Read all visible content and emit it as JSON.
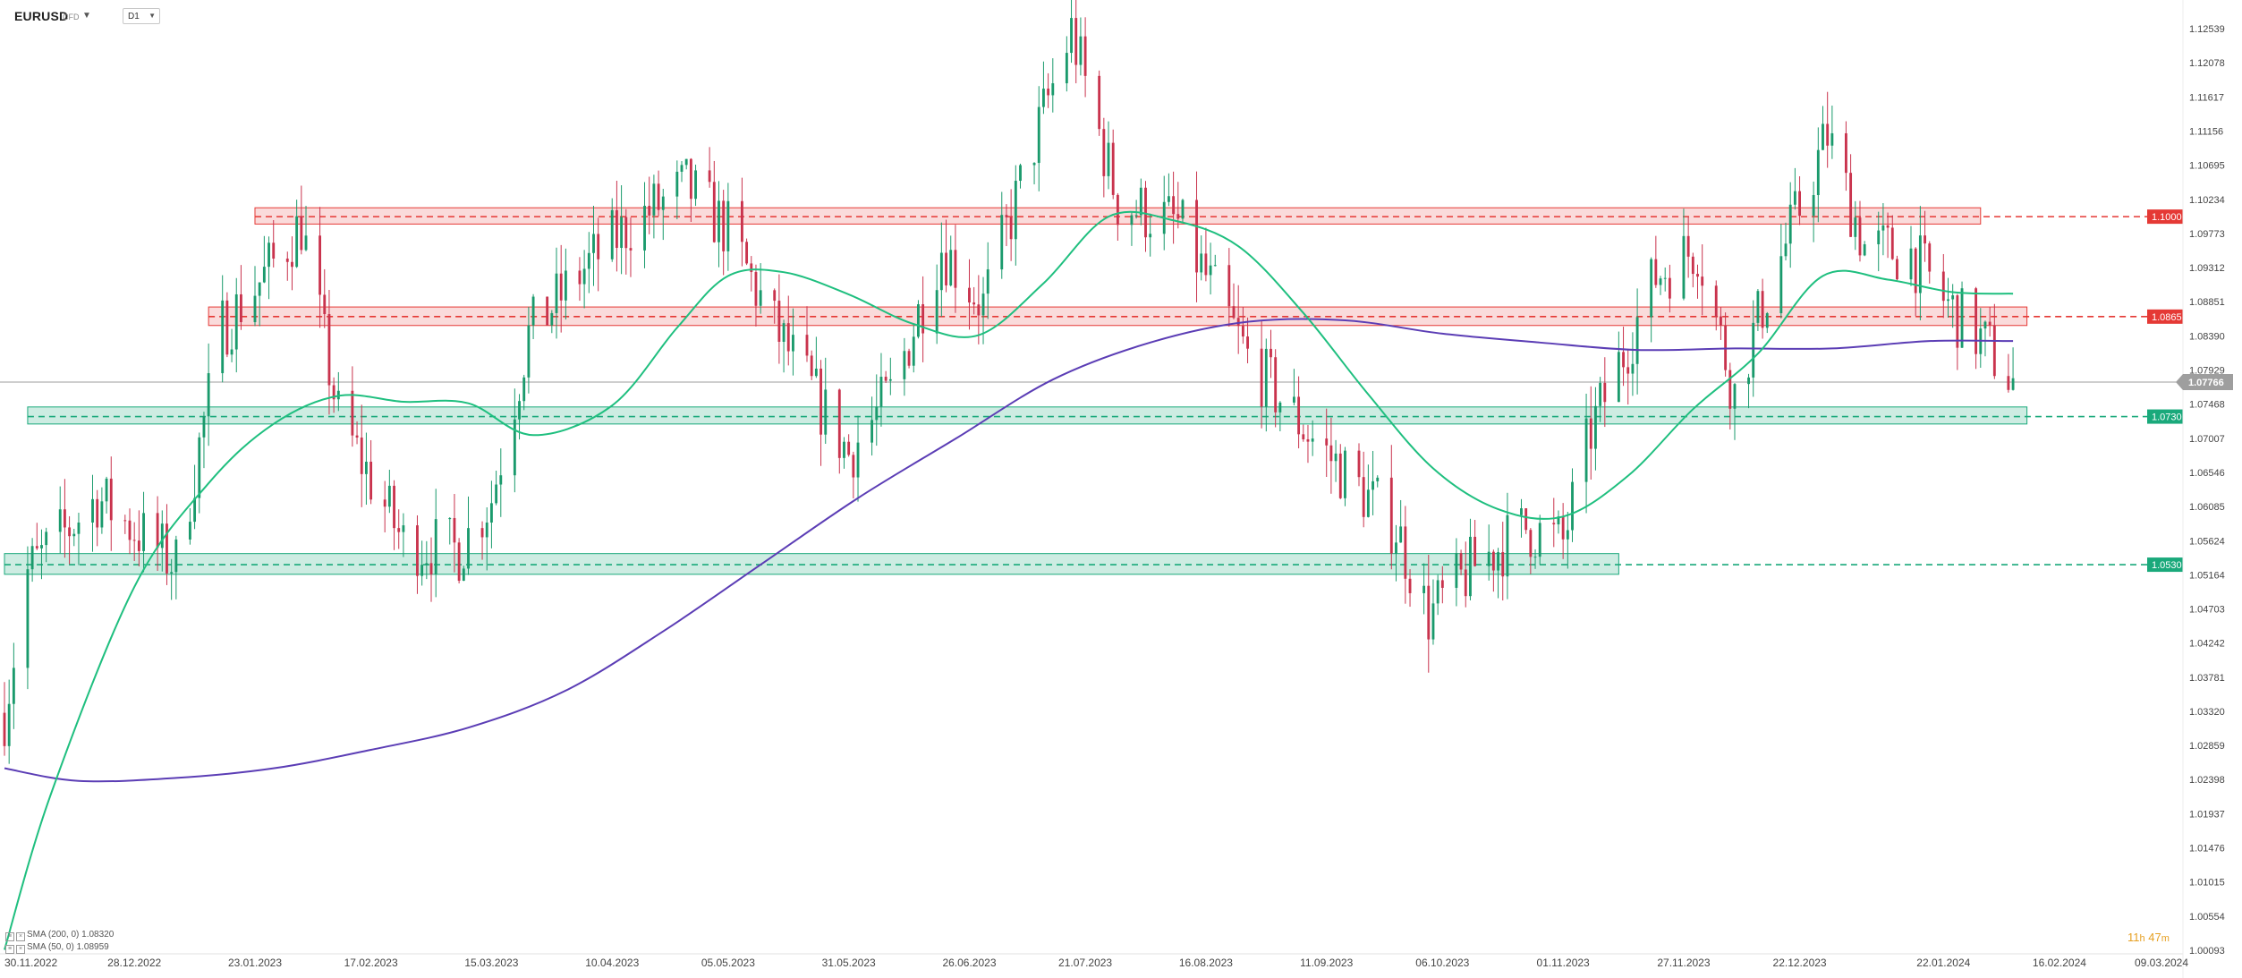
{
  "header": {
    "symbol": "EURUSD",
    "instrument_type": "CFD",
    "timeframe": "D1"
  },
  "legend": [
    {
      "label": "SMA (200, 0) 1.08320"
    },
    {
      "label": "SMA (50, 0) 1.08959"
    }
  ],
  "timer": {
    "hours": "11",
    "h_unit": "h",
    "minutes": "47",
    "m_unit": "m"
  },
  "colors": {
    "up": "#1a9a6c",
    "down": "#c9334d",
    "sma50": "#1fbf7f",
    "sma200": "#5b3db5",
    "resistance": "#e53935",
    "support": "#1aa97b"
  },
  "chart_data": {
    "type": "candlestick",
    "x_start": "30.11.2022",
    "x_end": "06.02.2024",
    "ylim": [
      1.00093,
      1.12539
    ],
    "y_ticks": [
      "1.12539",
      "1.12078",
      "1.11617",
      "1.11156",
      "1.10695",
      "1.10234",
      "1.09773",
      "1.09312",
      "1.08851",
      "1.08390",
      "1.07929",
      "1.07468",
      "1.07007",
      "1.06546",
      "1.06085",
      "1.05624",
      "1.05164",
      "1.04703",
      "1.04242",
      "1.03781",
      "1.03320",
      "1.02859",
      "1.02398",
      "1.01937",
      "1.01476",
      "1.01015",
      "1.00554",
      "1.00093"
    ],
    "x_ticks": [
      "30.11.2022",
      "28.12.2022",
      "23.01.2023",
      "17.02.2023",
      "15.03.2023",
      "10.04.2023",
      "05.05.2023",
      "31.05.2023",
      "26.06.2023",
      "21.07.2023",
      "16.08.2023",
      "11.09.2023",
      "06.10.2023",
      "01.11.2023",
      "27.11.2023",
      "22.12.2023",
      "22.01.2024",
      "16.02.2024",
      "09.03.2024"
    ],
    "current_price": "1.07766",
    "close_path": [
      [
        "30.11.2022",
        1.033
      ],
      [
        "05.12.2022",
        1.052
      ],
      [
        "20.12.2022",
        1.062
      ],
      [
        "06.01.2023",
        1.053
      ],
      [
        "16.01.2023",
        1.085
      ],
      [
        "25.01.2023",
        1.092
      ],
      [
        "02.02.2023",
        1.099
      ],
      [
        "10.02.2023",
        1.073
      ],
      [
        "24.02.2023",
        1.056
      ],
      [
        "08.03.2023",
        1.055
      ],
      [
        "15.03.2023",
        1.062
      ],
      [
        "23.03.2023",
        1.084
      ],
      [
        "04.04.2023",
        1.093
      ],
      [
        "14.04.2023",
        1.099
      ],
      [
        "26.04.2023",
        1.104
      ],
      [
        "05.05.2023",
        1.098
      ],
      [
        "15.05.2023",
        1.085
      ],
      [
        "31.05.2023",
        1.068
      ],
      [
        "09.06.2023",
        1.076
      ],
      [
        "20.06.2023",
        1.096
      ],
      [
        "29.06.2023",
        1.088
      ],
      [
        "12.07.2023",
        1.114
      ],
      [
        "18.07.2023",
        1.125
      ],
      [
        "28.07.2023",
        1.102
      ],
      [
        "10.08.2023",
        1.099
      ],
      [
        "25.08.2023",
        1.081
      ],
      [
        "08.09.2023",
        1.07
      ],
      [
        "26.09.2023",
        1.058
      ],
      [
        "03.10.2023",
        1.046
      ],
      [
        "13.10.2023",
        1.053
      ],
      [
        "24.10.2023",
        1.058
      ],
      [
        "01.11.2023",
        1.056
      ],
      [
        "07.11.2023",
        1.071
      ],
      [
        "21.11.2023",
        1.092
      ],
      [
        "30.11.2023",
        1.096
      ],
      [
        "08.12.2023",
        1.076
      ],
      [
        "14.12.2023",
        1.088
      ],
      [
        "28.12.2023",
        1.111
      ],
      [
        "05.01.2024",
        1.096
      ],
      [
        "15.01.2024",
        1.095
      ],
      [
        "23.01.2024",
        1.088
      ],
      [
        "01.02.2024",
        1.082
      ],
      [
        "06.02.2024",
        1.0776
      ]
    ],
    "sma50_path": [
      [
        "30.11.2022",
        1.001
      ],
      [
        "10.12.2022",
        1.022
      ],
      [
        "28.12.2022",
        1.05
      ],
      [
        "13.01.2023",
        1.064
      ],
      [
        "27.01.2023",
        1.072
      ],
      [
        "10.02.2023",
        1.0758
      ],
      [
        "24.02.2023",
        1.075
      ],
      [
        "10.03.2023",
        1.0748
      ],
      [
        "24.03.2023",
        1.0705
      ],
      [
        "10.04.2023",
        1.0745
      ],
      [
        "24.04.2023",
        1.085
      ],
      [
        "05.05.2023",
        1.092
      ],
      [
        "17.05.2023",
        1.0925
      ],
      [
        "31.05.2023",
        1.0895
      ],
      [
        "14.06.2023",
        1.0855
      ],
      [
        "28.06.2023",
        1.084
      ],
      [
        "12.07.2023",
        1.091
      ],
      [
        "26.07.2023",
        1.1
      ],
      [
        "09.08.2023",
        1.0995
      ],
      [
        "23.08.2023",
        1.096
      ],
      [
        "06.09.2023",
        1.087
      ],
      [
        "20.09.2023",
        1.076
      ],
      [
        "04.10.2023",
        1.066
      ],
      [
        "18.10.2023",
        1.0605
      ],
      [
        "01.11.2023",
        1.0595
      ],
      [
        "15.11.2023",
        1.065
      ],
      [
        "29.11.2023",
        1.074
      ],
      [
        "13.12.2023",
        1.0815
      ],
      [
        "27.12.2023",
        1.092
      ],
      [
        "10.01.2024",
        1.0915
      ],
      [
        "24.01.2024",
        1.0898
      ],
      [
        "06.02.2024",
        1.0896
      ]
    ],
    "sma200_path": [
      [
        "30.11.2022",
        1.0255
      ],
      [
        "16.12.2022",
        1.0238
      ],
      [
        "06.01.2023",
        1.0242
      ],
      [
        "27.01.2023",
        1.0255
      ],
      [
        "17.02.2023",
        1.028
      ],
      [
        "10.03.2023",
        1.031
      ],
      [
        "31.03.2023",
        1.036
      ],
      [
        "21.04.2023",
        1.044
      ],
      [
        "12.05.2023",
        1.053
      ],
      [
        "02.06.2023",
        1.062
      ],
      [
        "23.06.2023",
        1.07
      ],
      [
        "14.07.2023",
        1.078
      ],
      [
        "04.08.2023",
        1.083
      ],
      [
        "25.08.2023",
        1.0858
      ],
      [
        "15.09.2023",
        1.086
      ],
      [
        "06.10.2023",
        1.0842
      ],
      [
        "27.10.2023",
        1.083
      ],
      [
        "17.11.2023",
        1.082
      ],
      [
        "08.12.2023",
        1.0822
      ],
      [
        "29.12.2023",
        1.0822
      ],
      [
        "19.01.2024",
        1.0832
      ],
      [
        "06.02.2024",
        1.0832
      ]
    ],
    "zones": [
      {
        "kind": "resistance",
        "label": "1.1000",
        "level": 1.1,
        "top": 1.1012,
        "bottom": 1.099,
        "from": "23.01.2023",
        "to": "30.01.2024"
      },
      {
        "kind": "resistance",
        "label": "1.0865",
        "level": 1.0865,
        "top": 1.0878,
        "bottom": 1.0853,
        "from": "13.01.2023",
        "to": "09.02.2024"
      },
      {
        "kind": "support",
        "label": "1.0730",
        "level": 1.073,
        "top": 1.0743,
        "bottom": 1.072,
        "from": "05.12.2022",
        "to": "09.02.2024"
      },
      {
        "kind": "support",
        "label": "1.0530",
        "level": 1.053,
        "top": 1.0545,
        "bottom": 1.0517,
        "from": "30.11.2022",
        "to": "13.11.2023"
      }
    ]
  }
}
